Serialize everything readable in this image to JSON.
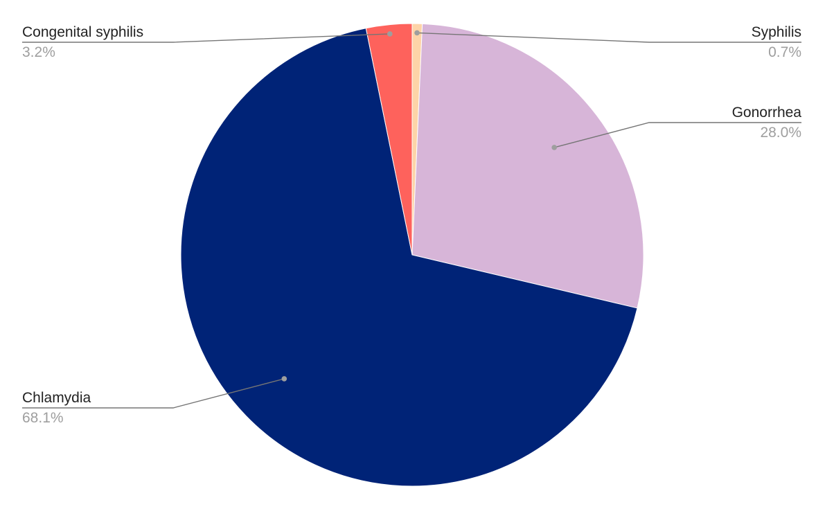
{
  "chart_data": {
    "type": "pie",
    "title": "",
    "slices": [
      {
        "label": "Syphilis",
        "value": 0.7,
        "value_label": "0.7%",
        "color": "#fdd4a8"
      },
      {
        "label": "Gonorrhea",
        "value": 28.0,
        "value_label": "28.0%",
        "color": "#d7b5d8"
      },
      {
        "label": "Chlamydia",
        "value": 68.1,
        "value_label": "68.1%",
        "color": "#002377"
      },
      {
        "label": "Congenital syphilis",
        "value": 3.2,
        "value_label": "3.2%",
        "color": "#fe625c"
      }
    ],
    "start_angle_deg": 0,
    "direction": "clockwise",
    "legend": "none",
    "label_style": "leader-lines"
  }
}
